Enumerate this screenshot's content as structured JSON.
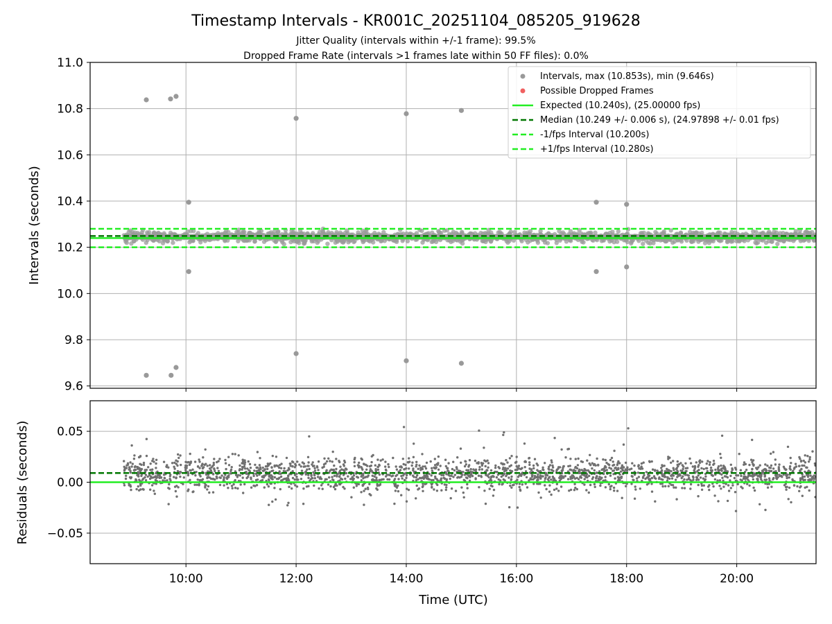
{
  "title": "Timestamp Intervals - KR001C_20251104_085205_919628",
  "subtitle_1": "Jitter Quality (intervals within +/-1 frame): 99.5%",
  "subtitle_2": "Dropped Frame Rate (intervals >1 frames late within 50 FF files): 0.0%",
  "colors": {
    "scatter": "#999999",
    "residual_points": "#707070",
    "dropped": "#f06060",
    "expected": "#22ee22",
    "median": "#007700",
    "fps_bounds": "#22ee22",
    "grid": "#b0b0b0",
    "band": "#555555"
  },
  "chart_data": [
    {
      "type": "scatter",
      "xlabel": "",
      "ylabel": "Intervals (seconds)",
      "x_unit": "hours UTC",
      "xlim": [
        8.26,
        21.44
      ],
      "ylim": [
        9.59,
        11.0
      ],
      "yticks": [
        9.6,
        9.8,
        10.0,
        10.2,
        10.4,
        10.6,
        10.8,
        11.0
      ],
      "ytick_labels": [
        "9.6",
        "9.8",
        "10.0",
        "10.2",
        "10.4",
        "10.6",
        "10.8",
        "11.0"
      ],
      "grid": true,
      "legend_position": "top-right",
      "legend": [
        {
          "key": "intervals",
          "label": "Intervals, max (10.853s), min (9.646s)",
          "marker": "dot"
        },
        {
          "key": "dropped",
          "label": "Possible Dropped Frames",
          "marker": "dot"
        },
        {
          "key": "expected",
          "label": "Expected (10.240s), (25.00000 fps)",
          "marker": "solid"
        },
        {
          "key": "median",
          "label": "Median (10.249 +/- 0.006 s), (24.97898 +/- 0.01 fps)",
          "marker": "dashed"
        },
        {
          "key": "minus",
          "label": "-1/fps Interval (10.200s)",
          "marker": "dashed"
        },
        {
          "key": "plus",
          "label": "+1/fps Interval (10.280s)",
          "marker": "dashed"
        }
      ],
      "lines": {
        "expected": 10.24,
        "median": 10.249,
        "minus_fps": 10.2,
        "plus_fps": 10.28
      },
      "series_range_x": [
        8.87,
        21.44
      ],
      "bulk_band": {
        "center": 10.245,
        "half_width": 0.012
      },
      "outliers": [
        {
          "x": 9.28,
          "y": 10.838
        },
        {
          "x": 9.72,
          "y": 10.842
        },
        {
          "x": 9.82,
          "y": 10.853
        },
        {
          "x": 12.0,
          "y": 10.758
        },
        {
          "x": 14.0,
          "y": 10.778
        },
        {
          "x": 15.0,
          "y": 10.792
        },
        {
          "x": 10.05,
          "y": 10.395
        },
        {
          "x": 17.45,
          "y": 10.395
        },
        {
          "x": 18.0,
          "y": 10.386
        },
        {
          "x": 10.05,
          "y": 10.095
        },
        {
          "x": 17.45,
          "y": 10.095
        },
        {
          "x": 18.0,
          "y": 10.115
        },
        {
          "x": 12.0,
          "y": 9.74
        },
        {
          "x": 14.0,
          "y": 9.709
        },
        {
          "x": 15.0,
          "y": 9.698
        },
        {
          "x": 9.28,
          "y": 9.646
        },
        {
          "x": 9.73,
          "y": 9.646
        },
        {
          "x": 9.82,
          "y": 9.68
        }
      ]
    },
    {
      "type": "scatter",
      "xlabel": "Time (UTC)",
      "ylabel": "Residuals (seconds)",
      "x_unit": "hours UTC",
      "xlim": [
        8.26,
        21.44
      ],
      "ylim": [
        -0.08,
        0.08
      ],
      "yticks": [
        -0.05,
        0.0,
        0.05
      ],
      "ytick_labels": [
        "−0.05",
        "0.00",
        "0.05"
      ],
      "xticks": [
        10,
        12,
        14,
        16,
        18,
        20
      ],
      "xtick_labels": [
        "10:00",
        "12:00",
        "14:00",
        "16:00",
        "18:00",
        "20:00"
      ],
      "grid": true,
      "lines": {
        "zero": 0.0,
        "median_offset": 0.009
      },
      "series_range_x": [
        8.87,
        21.44
      ],
      "residual_center": 0.008,
      "residual_spread": 0.009
    }
  ]
}
